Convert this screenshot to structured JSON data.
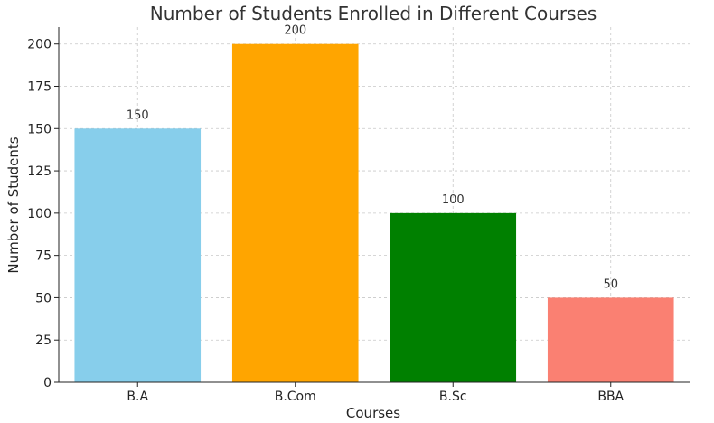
{
  "chart_data": {
    "type": "bar",
    "title": "Number of Students Enrolled in Different Courses",
    "xlabel": "Courses",
    "ylabel": "Number of Students",
    "categories": [
      "B.A",
      "B.Com",
      "B.Sc",
      "BBA"
    ],
    "values": [
      150,
      200,
      100,
      50
    ],
    "data_labels": [
      "150",
      "200",
      "100",
      "50"
    ],
    "colors": [
      "#87CEEB",
      "#FFA500",
      "#008000",
      "#FA8072"
    ],
    "ylim": [
      0,
      210
    ],
    "yticks": [
      0,
      25,
      50,
      75,
      100,
      125,
      150,
      175,
      200
    ],
    "ytick_labels": [
      "0",
      "25",
      "50",
      "75",
      "100",
      "125",
      "150",
      "175",
      "200"
    ],
    "grid": true,
    "grid_style": "dashed"
  }
}
